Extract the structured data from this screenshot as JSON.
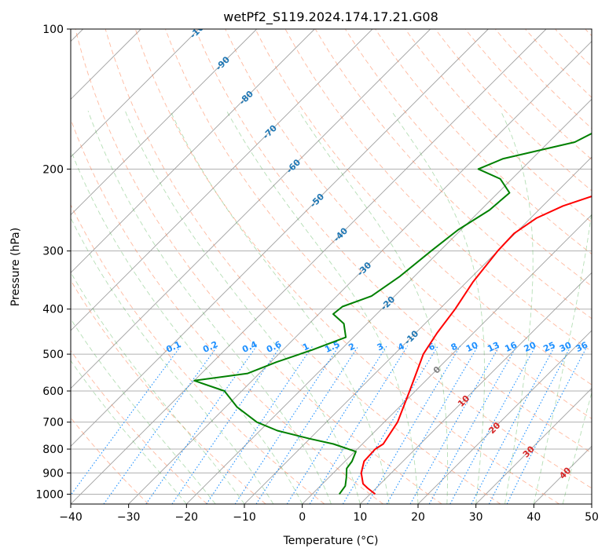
{
  "chart_data": {
    "type": "line",
    "title": "wetPf2_S119.2024.174.17.21.G08",
    "xlabel": "Temperature (°C)",
    "ylabel": "Pressure (hPa)",
    "xlim": [
      -40,
      50
    ],
    "ylim": [
      1050,
      100
    ],
    "y_scale": "log",
    "grid": true,
    "x_ticks": [
      -40,
      -30,
      -20,
      -10,
      0,
      10,
      20,
      30,
      40,
      50
    ],
    "x_tick_labels": [
      "−40",
      "−30",
      "−20",
      "−10",
      "0",
      "10",
      "20",
      "30",
      "40",
      "50"
    ],
    "y_ticks": [
      100,
      200,
      300,
      400,
      500,
      600,
      700,
      800,
      900,
      1000
    ],
    "y_tick_labels": [
      "100",
      "200",
      "300",
      "400",
      "500",
      "600",
      "700",
      "800",
      "900",
      "1000"
    ],
    "colors": {
      "temperature": "#ff0000",
      "dewpoint": "#008000",
      "dry_adiabat": "#ff7f50",
      "moist_adiabat": "#2ca02c",
      "mixing_ratio": "#1e90ff",
      "isotherm": "#555555",
      "isotherm_label_pos": "#d62728",
      "isotherm_label_zero": "#808080",
      "isotherm_label_neg": "#1f77b4"
    },
    "isotherm_labels": [
      {
        "t": -100,
        "text": "-100"
      },
      {
        "t": -90,
        "text": "-90"
      },
      {
        "t": -80,
        "text": "-80"
      },
      {
        "t": -70,
        "text": "-70"
      },
      {
        "t": -60,
        "text": "-60"
      },
      {
        "t": -50,
        "text": "-50"
      },
      {
        "t": -40,
        "text": "-40"
      },
      {
        "t": -30,
        "text": "-30"
      },
      {
        "t": -20,
        "text": "-20"
      },
      {
        "t": -10,
        "text": "-10"
      },
      {
        "t": 0,
        "text": "0"
      },
      {
        "t": 10,
        "text": "10"
      },
      {
        "t": 20,
        "text": "20"
      },
      {
        "t": 30,
        "text": "30"
      },
      {
        "t": 40,
        "text": "40"
      }
    ],
    "mixing_ratios": [
      {
        "w": 0.1,
        "text": "0.1"
      },
      {
        "w": 0.2,
        "text": "0.2"
      },
      {
        "w": 0.4,
        "text": "0.4"
      },
      {
        "w": 0.6,
        "text": "0.6"
      },
      {
        "w": 1,
        "text": "1"
      },
      {
        "w": 1.5,
        "text": "1.5"
      },
      {
        "w": 2,
        "text": "2"
      },
      {
        "w": 3,
        "text": "3"
      },
      {
        "w": 4,
        "text": "4"
      },
      {
        "w": 6,
        "text": "6"
      },
      {
        "w": 8,
        "text": "8"
      },
      {
        "w": 10,
        "text": "10"
      },
      {
        "w": 13,
        "text": "13"
      },
      {
        "w": 16,
        "text": "16"
      },
      {
        "w": 20,
        "text": "20"
      },
      {
        "w": 25,
        "text": "25"
      },
      {
        "w": 30,
        "text": "30"
      },
      {
        "w": 36,
        "text": "36"
      }
    ],
    "series": [
      {
        "key": "temperature",
        "points": [
          [
            1000,
            10.9
          ],
          [
            970,
            8.5
          ],
          [
            950,
            7.0
          ],
          [
            900,
            4.8
          ],
          [
            850,
            3.3
          ],
          [
            800,
            3.1
          ],
          [
            780,
            3.6
          ],
          [
            700,
            2.3
          ],
          [
            600,
            -1.0
          ],
          [
            500,
            -5.0
          ],
          [
            450,
            -6.3
          ],
          [
            400,
            -7.3
          ],
          [
            350,
            -8.9
          ],
          [
            300,
            -10.0
          ],
          [
            275,
            -10.2
          ],
          [
            255,
            -9.0
          ],
          [
            240,
            -6.5
          ],
          [
            225,
            -2.0
          ],
          [
            210,
            5.0
          ],
          [
            200,
            7.5
          ],
          [
            185,
            8.8
          ],
          [
            170,
            11.5
          ],
          [
            155,
            16.5
          ],
          [
            140,
            20.5
          ],
          [
            125,
            25.0
          ],
          [
            110,
            28.5
          ],
          [
            100,
            31.5
          ]
        ]
      },
      {
        "key": "dewpoint",
        "points": [
          [
            1000,
            4.7
          ],
          [
            960,
            4.3
          ],
          [
            920,
            3.0
          ],
          [
            880,
            1.5
          ],
          [
            850,
            1.2
          ],
          [
            810,
            0.2
          ],
          [
            780,
            -5.0
          ],
          [
            760,
            -10.0
          ],
          [
            730,
            -17.0
          ],
          [
            700,
            -22.0
          ],
          [
            650,
            -28.0
          ],
          [
            600,
            -33.0
          ],
          [
            570,
            -40.0
          ],
          [
            550,
            -32.0
          ],
          [
            520,
            -29.0
          ],
          [
            490,
            -25.0
          ],
          [
            460,
            -21.3
          ],
          [
            430,
            -24.0
          ],
          [
            410,
            -27.5
          ],
          [
            395,
            -27.2
          ],
          [
            375,
            -24.0
          ],
          [
            340,
            -22.5
          ],
          [
            300,
            -21.5
          ],
          [
            270,
            -20.5
          ],
          [
            245,
            -18.5
          ],
          [
            225,
            -18.0
          ],
          [
            210,
            -22.0
          ],
          [
            200,
            -27.5
          ],
          [
            190,
            -25.0
          ],
          [
            175,
            -15.5
          ],
          [
            160,
            -12.5
          ],
          [
            150,
            -15.5
          ],
          [
            140,
            -14.0
          ],
          [
            125,
            -8.0
          ],
          [
            110,
            -4.0
          ],
          [
            100,
            -1.0
          ]
        ]
      }
    ]
  }
}
